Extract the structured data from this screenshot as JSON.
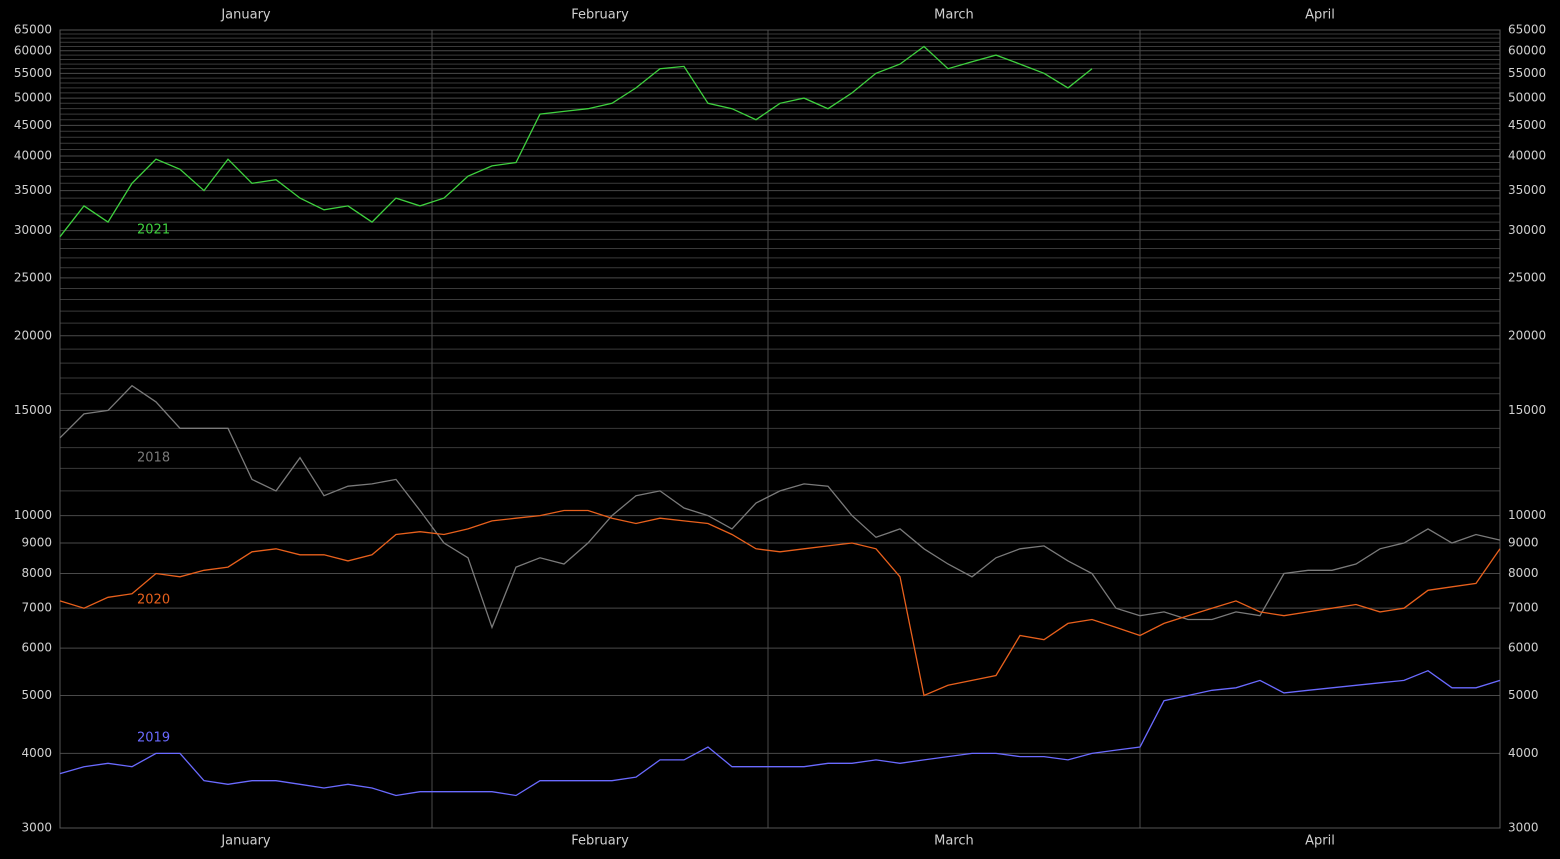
{
  "chart_data": {
    "type": "line",
    "log_scale": true,
    "grid": true,
    "minor_grid_step": 1000,
    "xlim": [
      0,
      120
    ],
    "ylim": [
      3000,
      65000
    ],
    "yticks": [
      3000,
      4000,
      5000,
      6000,
      7000,
      8000,
      9000,
      10000,
      15000,
      20000,
      25000,
      30000,
      35000,
      40000,
      45000,
      50000,
      55000,
      60000,
      65000
    ],
    "months": [
      {
        "label": "January",
        "start": 0,
        "end": 31
      },
      {
        "label": "February",
        "start": 31,
        "end": 59
      },
      {
        "label": "March",
        "start": 59,
        "end": 90
      },
      {
        "label": "April",
        "start": 90,
        "end": 120
      }
    ],
    "x": [
      0,
      2,
      4,
      6,
      8,
      10,
      12,
      14,
      16,
      18,
      20,
      22,
      24,
      26,
      28,
      30,
      32,
      34,
      36,
      38,
      40,
      42,
      44,
      46,
      48,
      50,
      52,
      54,
      56,
      58,
      60,
      62,
      64,
      66,
      68,
      70,
      72,
      74,
      76,
      78,
      80,
      82,
      84,
      86,
      88,
      90,
      92,
      94,
      96,
      98,
      100,
      102,
      104,
      106,
      108,
      110,
      112,
      114,
      116,
      118,
      120
    ],
    "series": [
      {
        "name": "2021",
        "color": "#3fd13f",
        "values": [
          29300,
          33000,
          31000,
          36000,
          39500,
          38000,
          35000,
          39500,
          36000,
          36500,
          34000,
          32500,
          33000,
          31000,
          34000,
          33000,
          34000,
          37000,
          38500,
          39000,
          47000,
          47500,
          48000,
          49000,
          52000,
          56000,
          56500,
          49000,
          48000,
          46000,
          49000,
          50000,
          48000,
          51000,
          55000,
          57000,
          61000,
          56000,
          57500,
          59000,
          57000,
          55000,
          52000,
          56000,
          null,
          null,
          null,
          null,
          null,
          null,
          null,
          null,
          null,
          null,
          null,
          null,
          null,
          null,
          null,
          null,
          null
        ]
      },
      {
        "name": "2018",
        "color": "#7a7a7a",
        "values": [
          13500,
          14800,
          15000,
          16500,
          15500,
          14000,
          14000,
          14000,
          11500,
          11000,
          12500,
          10800,
          11200,
          11300,
          11500,
          10200,
          9000,
          8500,
          6500,
          8200,
          8500,
          8300,
          9000,
          10000,
          10800,
          11000,
          10300,
          10000,
          9500,
          10500,
          11000,
          11300,
          11200,
          10000,
          9200,
          9500,
          8800,
          8300,
          7900,
          8500,
          8800,
          8900,
          8400,
          8000,
          7000,
          6800,
          6900,
          6700,
          6700,
          6900,
          6800,
          8000,
          8100,
          8100,
          8300,
          8800,
          9000,
          9500,
          9000,
          9300,
          9100
        ]
      },
      {
        "name": "2020",
        "color": "#e8601c",
        "values": [
          7200,
          7000,
          7300,
          7400,
          8000,
          7900,
          8100,
          8200,
          8700,
          8800,
          8600,
          8600,
          8400,
          8600,
          9300,
          9400,
          9300,
          9500,
          9800,
          9900,
          10000,
          10200,
          10200,
          9900,
          9700,
          9900,
          9800,
          9700,
          9300,
          8800,
          8700,
          8800,
          8900,
          9000,
          8800,
          7900,
          5000,
          5200,
          5300,
          5400,
          6300,
          6200,
          6600,
          6700,
          6500,
          6300,
          6600,
          6800,
          7000,
          7200,
          6900,
          6800,
          6900,
          7000,
          7100,
          6900,
          7000,
          7500,
          7600,
          7700,
          8800
        ]
      },
      {
        "name": "2019",
        "color": "#6a6aff",
        "values": [
          3700,
          3800,
          3850,
          3800,
          4000,
          4000,
          3600,
          3550,
          3600,
          3600,
          3550,
          3500,
          3550,
          3500,
          3400,
          3450,
          3450,
          3450,
          3450,
          3400,
          3600,
          3600,
          3600,
          3600,
          3650,
          3900,
          3900,
          4100,
          3800,
          3800,
          3800,
          3800,
          3850,
          3850,
          3900,
          3850,
          3900,
          3950,
          4000,
          4000,
          3950,
          3950,
          3900,
          4000,
          4050,
          4100,
          4900,
          5000,
          5100,
          5150,
          5300,
          5050,
          5100,
          5150,
          5200,
          5250,
          5300,
          5500,
          5150,
          5150,
          5300
        ]
      }
    ]
  }
}
